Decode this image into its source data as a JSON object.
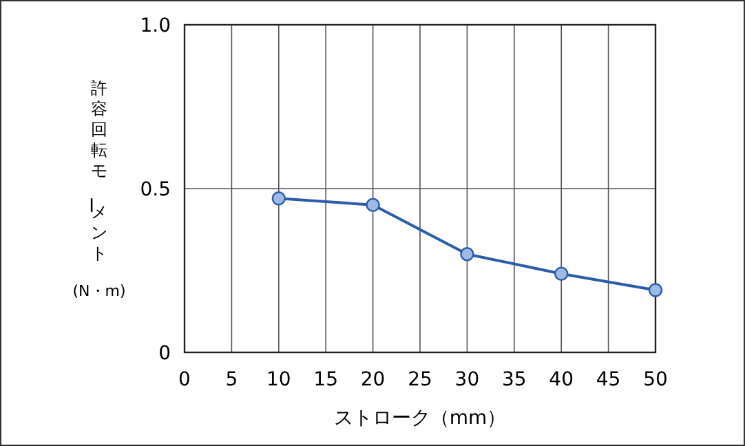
{
  "chart_data": {
    "type": "line",
    "xlabel": "ストローク（mm）",
    "ylabel": "許容回転モーメント\n(N・m)",
    "x": [
      10,
      20,
      30,
      40,
      50
    ],
    "series": [
      {
        "color": "#2a5caa",
        "values": [
          0.47,
          0.45,
          0.3,
          0.24,
          0.19
        ]
      }
    ],
    "xlim": [
      0,
      50
    ],
    "xticks": [
      0,
      5,
      10,
      15,
      20,
      25,
      30,
      35,
      40,
      45,
      50
    ],
    "ylim": [
      0,
      1
    ],
    "yticks": [
      0,
      {
        "value": 0.5,
        "label": "0.5"
      },
      {
        "value": 1,
        "label": "1.0"
      }
    ],
    "grid": true,
    "marker": "circle",
    "line_style": "solid"
  }
}
